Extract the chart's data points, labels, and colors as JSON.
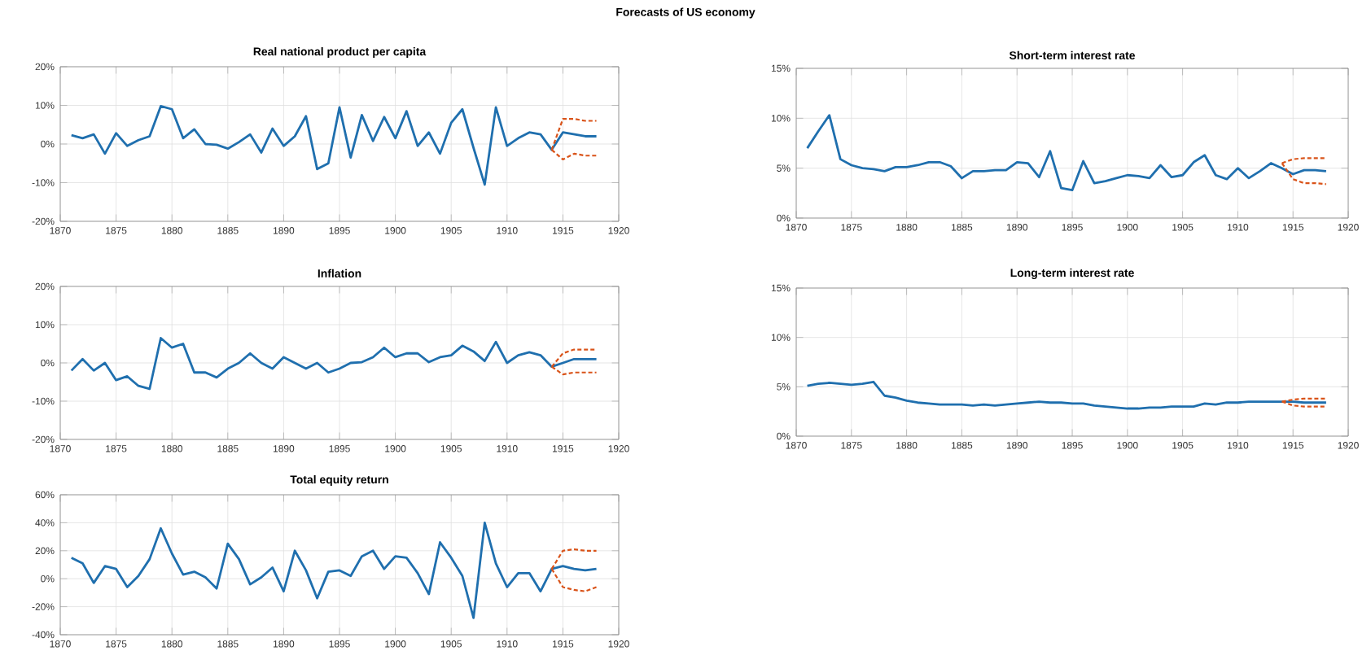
{
  "chart_data": [
    {
      "type": "line",
      "title": "Real national product per capita",
      "annotations": [
        "Forecasts of US economy"
      ],
      "x": [
        1871,
        1872,
        1873,
        1874,
        1875,
        1876,
        1877,
        1878,
        1879,
        1880,
        1881,
        1882,
        1883,
        1884,
        1885,
        1886,
        1887,
        1888,
        1889,
        1890,
        1891,
        1892,
        1893,
        1894,
        1895,
        1896,
        1897,
        1898,
        1899,
        1900,
        1901,
        1902,
        1903,
        1904,
        1905,
        1906,
        1907,
        1908,
        1909,
        1910,
        1911,
        1912,
        1913,
        1914,
        1915,
        1916,
        1917,
        1918
      ],
      "series": [
        {
          "color": "#1f6fae",
          "values": [
            2.3,
            1.5,
            2.5,
            -2.5,
            2.8,
            -0.5,
            1,
            2,
            9.8,
            9,
            1.5,
            3.8,
            0,
            -0.2,
            -1.2,
            0.5,
            2.5,
            -2.2,
            4,
            -0.5,
            2,
            7.2,
            -6.5,
            -5,
            9.5,
            -3.5,
            7.5,
            0.8,
            7,
            1.5,
            8.5,
            -0.5,
            3,
            -2.5,
            5.5,
            9,
            -1,
            -10.5,
            9.5,
            -0.5,
            1.5,
            3,
            2.5,
            -1.5,
            3,
            2.5,
            2,
            2
          ]
        },
        {
          "color": "#d95319",
          "line_style": "dashed",
          "x": [
            1914,
            1915,
            1916,
            1917,
            1918
          ],
          "values": [
            -1.5,
            6.5,
            6.5,
            6,
            6
          ]
        },
        {
          "color": "#d95319",
          "line_style": "dashed",
          "x": [
            1914,
            1915,
            1916,
            1917,
            1918
          ],
          "values": [
            -1.5,
            -4,
            -2.5,
            -3,
            -3
          ]
        }
      ],
      "xlim": [
        1870,
        1920
      ],
      "xticks": [
        1870,
        1875,
        1880,
        1885,
        1890,
        1895,
        1900,
        1905,
        1910,
        1915,
        1920
      ],
      "ylim": [
        -20,
        20
      ],
      "yticks": [
        {
          "value": -20,
          "label": "-20%"
        },
        {
          "value": -10,
          "label": "-10%"
        },
        {
          "value": 0,
          "label": "0%"
        },
        {
          "value": 10,
          "label": "10%"
        },
        {
          "value": 20,
          "label": "20%"
        }
      ],
      "grid": true
    },
    {
      "type": "line",
      "title": "Inflation",
      "x": [
        1871,
        1872,
        1873,
        1874,
        1875,
        1876,
        1877,
        1878,
        1879,
        1880,
        1881,
        1882,
        1883,
        1884,
        1885,
        1886,
        1887,
        1888,
        1889,
        1890,
        1891,
        1892,
        1893,
        1894,
        1895,
        1896,
        1897,
        1898,
        1899,
        1900,
        1901,
        1902,
        1903,
        1904,
        1905,
        1906,
        1907,
        1908,
        1909,
        1910,
        1911,
        1912,
        1913,
        1914,
        1915,
        1916,
        1917,
        1918
      ],
      "series": [
        {
          "color": "#1f6fae",
          "values": [
            -2,
            1,
            -2,
            0,
            -4.5,
            -3.5,
            -6,
            -6.8,
            6.5,
            4,
            5,
            -2.5,
            -2.5,
            -3.8,
            -1.5,
            0,
            2.5,
            0,
            -1.5,
            1.5,
            0,
            -1.5,
            0,
            -2.5,
            -1.5,
            0,
            0.2,
            1.5,
            4,
            1.5,
            2.5,
            2.5,
            0.2,
            1.5,
            2,
            4.5,
            3,
            0.5,
            5.5,
            0,
            2,
            2.8,
            2,
            -1,
            0,
            1,
            1,
            1
          ]
        },
        {
          "color": "#d95319",
          "line_style": "dashed",
          "x": [
            1914,
            1915,
            1916,
            1917,
            1918
          ],
          "values": [
            -1,
            2.5,
            3.5,
            3.5,
            3.5
          ]
        },
        {
          "color": "#d95319",
          "line_style": "dashed",
          "x": [
            1914,
            1915,
            1916,
            1917,
            1918
          ],
          "values": [
            -1,
            -3,
            -2.5,
            -2.5,
            -2.5
          ]
        }
      ],
      "xlim": [
        1870,
        1920
      ],
      "xticks": [
        1870,
        1875,
        1880,
        1885,
        1890,
        1895,
        1900,
        1905,
        1910,
        1915,
        1920
      ],
      "ylim": [
        -20,
        20
      ],
      "yticks": [
        {
          "value": -20,
          "label": "-20%"
        },
        {
          "value": -10,
          "label": "-10%"
        },
        {
          "value": 0,
          "label": "0%"
        },
        {
          "value": 10,
          "label": "10%"
        },
        {
          "value": 20,
          "label": "20%"
        }
      ],
      "grid": true
    },
    {
      "type": "line",
      "title": "Total equity return",
      "x": [
        1871,
        1872,
        1873,
        1874,
        1875,
        1876,
        1877,
        1878,
        1879,
        1880,
        1881,
        1882,
        1883,
        1884,
        1885,
        1886,
        1887,
        1888,
        1889,
        1890,
        1891,
        1892,
        1893,
        1894,
        1895,
        1896,
        1897,
        1898,
        1899,
        1900,
        1901,
        1902,
        1903,
        1904,
        1905,
        1906,
        1907,
        1908,
        1909,
        1910,
        1911,
        1912,
        1913,
        1914,
        1915,
        1916,
        1917,
        1918
      ],
      "series": [
        {
          "color": "#1f6fae",
          "values": [
            15,
            11,
            -3,
            9,
            7,
            -6,
            2,
            14,
            36,
            18,
            3,
            5,
            1,
            -7,
            25,
            14,
            -4,
            1,
            8,
            -9,
            20,
            6,
            -14,
            5,
            6,
            2,
            16,
            20,
            7,
            16,
            15,
            4,
            -11,
            26,
            15,
            2,
            -28,
            40,
            11,
            -6,
            4,
            4,
            -9,
            7,
            9,
            7,
            6,
            7
          ]
        },
        {
          "color": "#d95319",
          "line_style": "dashed",
          "x": [
            1914,
            1915,
            1916,
            1917,
            1918
          ],
          "values": [
            7,
            20,
            21,
            20,
            20
          ]
        },
        {
          "color": "#d95319",
          "line_style": "dashed",
          "x": [
            1914,
            1915,
            1916,
            1917,
            1918
          ],
          "values": [
            7,
            -6,
            -8,
            -9,
            -6
          ]
        }
      ],
      "xlim": [
        1870,
        1920
      ],
      "xticks": [
        1870,
        1875,
        1880,
        1885,
        1890,
        1895,
        1900,
        1905,
        1910,
        1915,
        1920
      ],
      "ylim": [
        -40,
        60
      ],
      "yticks": [
        {
          "value": -40,
          "label": "-40%"
        },
        {
          "value": -20,
          "label": "-20%"
        },
        {
          "value": 0,
          "label": "0%"
        },
        {
          "value": 20,
          "label": "20%"
        },
        {
          "value": 40,
          "label": "40%"
        },
        {
          "value": 60,
          "label": "60%"
        }
      ],
      "grid": true
    },
    {
      "type": "line",
      "title": "Short-term interest rate",
      "x": [
        1871,
        1872,
        1873,
        1874,
        1875,
        1876,
        1877,
        1878,
        1879,
        1880,
        1881,
        1882,
        1883,
        1884,
        1885,
        1886,
        1887,
        1888,
        1889,
        1890,
        1891,
        1892,
        1893,
        1894,
        1895,
        1896,
        1897,
        1898,
        1899,
        1900,
        1901,
        1902,
        1903,
        1904,
        1905,
        1906,
        1907,
        1908,
        1909,
        1910,
        1911,
        1912,
        1913,
        1914,
        1915,
        1916,
        1917,
        1918
      ],
      "series": [
        {
          "color": "#1f6fae",
          "values": [
            7,
            8.7,
            10.3,
            5.9,
            5.3,
            5,
            4.9,
            4.7,
            5.1,
            5.1,
            5.3,
            5.6,
            5.6,
            5.2,
            4,
            4.7,
            4.7,
            4.8,
            4.8,
            5.6,
            5.5,
            4.1,
            6.7,
            3,
            2.8,
            5.7,
            3.5,
            3.7,
            4,
            4.3,
            4.2,
            4,
            5.3,
            4.1,
            4.3,
            5.6,
            6.3,
            4.3,
            3.9,
            5,
            4,
            4.7,
            5.5,
            5,
            4.4,
            4.8,
            4.8,
            4.7
          ]
        },
        {
          "color": "#d95319",
          "line_style": "dashed",
          "x": [
            1914,
            1915,
            1916,
            1917,
            1918
          ],
          "values": [
            5.5,
            5.9,
            6,
            6,
            6
          ]
        },
        {
          "color": "#d95319",
          "line_style": "dashed",
          "x": [
            1914,
            1915,
            1916,
            1917,
            1918
          ],
          "values": [
            5.5,
            3.9,
            3.5,
            3.5,
            3.4
          ]
        }
      ],
      "xlim": [
        1870,
        1920
      ],
      "xticks": [
        1870,
        1875,
        1880,
        1885,
        1890,
        1895,
        1900,
        1905,
        1910,
        1915,
        1920
      ],
      "ylim": [
        0,
        15
      ],
      "yticks": [
        {
          "value": 0,
          "label": "0%"
        },
        {
          "value": 5,
          "label": "5%"
        },
        {
          "value": 10,
          "label": "10%"
        },
        {
          "value": 15,
          "label": "15%"
        }
      ],
      "grid": true
    },
    {
      "type": "line",
      "title": "Long-term interest rate",
      "x": [
        1871,
        1872,
        1873,
        1874,
        1875,
        1876,
        1877,
        1878,
        1879,
        1880,
        1881,
        1882,
        1883,
        1884,
        1885,
        1886,
        1887,
        1888,
        1889,
        1890,
        1891,
        1892,
        1893,
        1894,
        1895,
        1896,
        1897,
        1898,
        1899,
        1900,
        1901,
        1902,
        1903,
        1904,
        1905,
        1906,
        1907,
        1908,
        1909,
        1910,
        1911,
        1912,
        1913,
        1914,
        1915,
        1916,
        1917,
        1918
      ],
      "series": [
        {
          "color": "#1f6fae",
          "values": [
            5.1,
            5.3,
            5.4,
            5.3,
            5.2,
            5.3,
            5.5,
            4.1,
            3.9,
            3.6,
            3.4,
            3.3,
            3.2,
            3.2,
            3.2,
            3.1,
            3.2,
            3.1,
            3.2,
            3.3,
            3.4,
            3.5,
            3.4,
            3.4,
            3.3,
            3.3,
            3.1,
            3,
            2.9,
            2.8,
            2.8,
            2.9,
            2.9,
            3,
            3,
            3,
            3.3,
            3.2,
            3.4,
            3.4,
            3.5,
            3.5,
            3.5,
            3.5,
            3.5,
            3.4,
            3.4,
            3.4
          ]
        },
        {
          "color": "#d95319",
          "line_style": "dashed",
          "x": [
            1914,
            1915,
            1916,
            1917,
            1918
          ],
          "values": [
            3.5,
            3.7,
            3.8,
            3.8,
            3.8
          ]
        },
        {
          "color": "#d95319",
          "line_style": "dashed",
          "x": [
            1914,
            1915,
            1916,
            1917,
            1918
          ],
          "values": [
            3.5,
            3.1,
            3,
            3,
            3
          ]
        }
      ],
      "xlim": [
        1870,
        1920
      ],
      "xticks": [
        1870,
        1875,
        1880,
        1885,
        1890,
        1895,
        1900,
        1905,
        1910,
        1915,
        1920
      ],
      "ylim": [
        0,
        15
      ],
      "yticks": [
        {
          "value": 0,
          "label": "0%"
        },
        {
          "value": 5,
          "label": "5%"
        },
        {
          "value": 10,
          "label": "10%"
        },
        {
          "value": 15,
          "label": "15%"
        }
      ],
      "grid": true
    }
  ]
}
